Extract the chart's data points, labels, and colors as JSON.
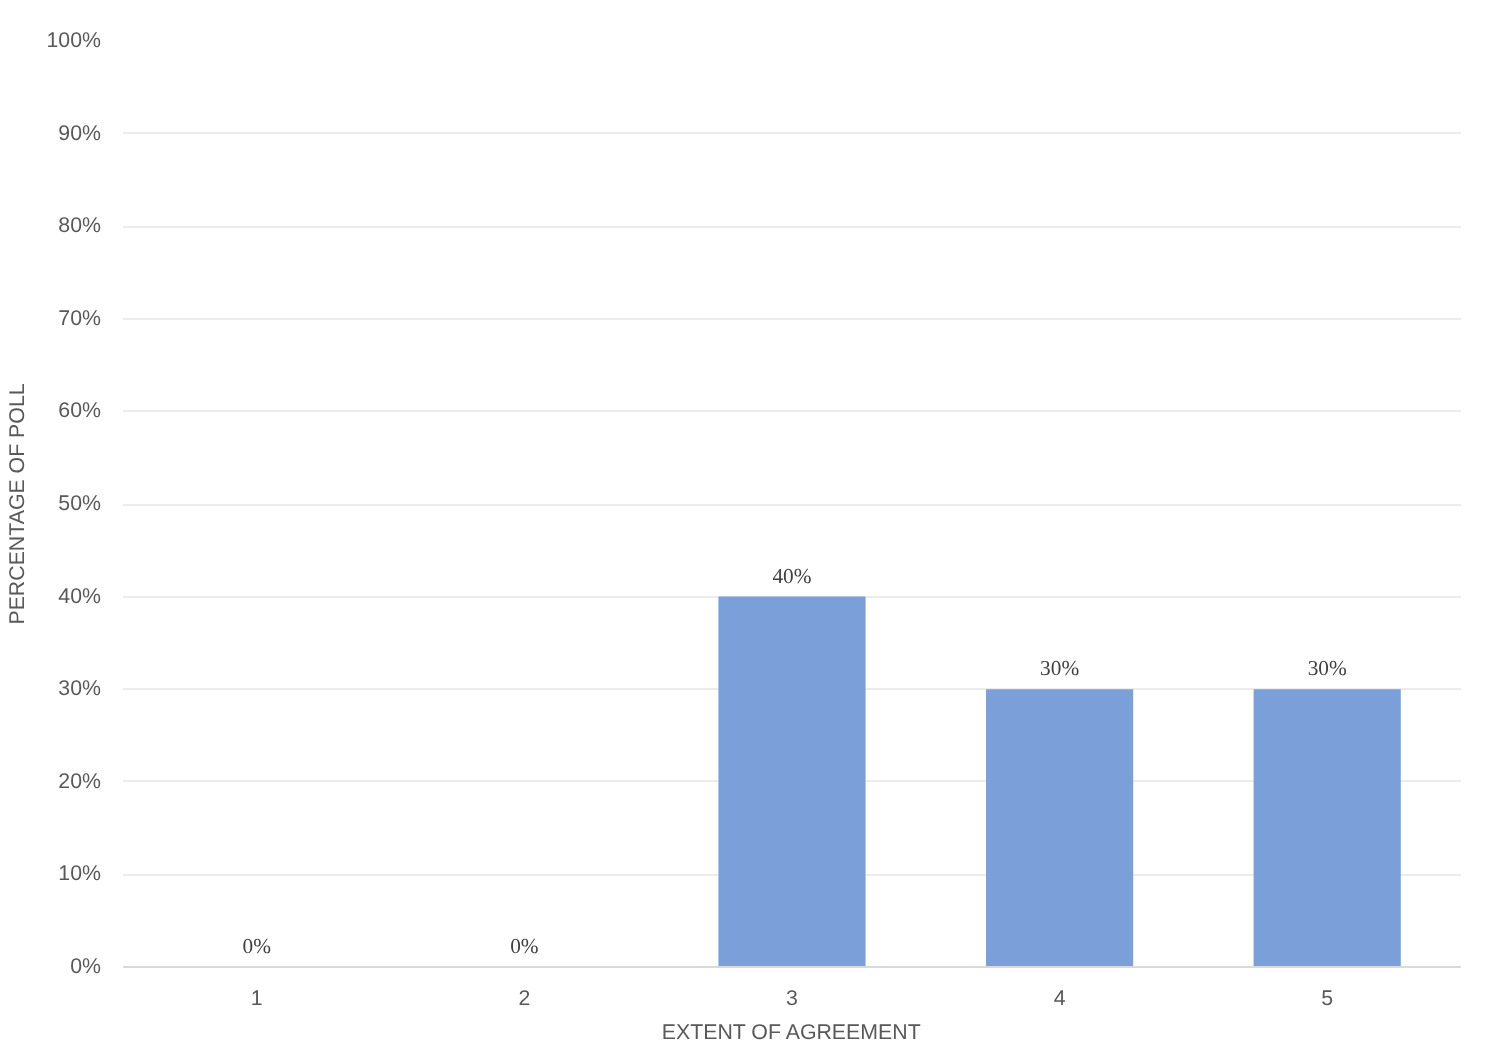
{
  "chart_data": {
    "type": "bar",
    "xlabel": "EXTENT OF AGREEMENT",
    "ylabel": "PERCENTAGE OF POLL",
    "categories": [
      "1",
      "2",
      "3",
      "4",
      "5"
    ],
    "values": [
      0,
      0,
      40,
      30,
      30
    ],
    "color": "#7b9fd8",
    "value_labels": [
      "0%",
      "0%",
      "40%",
      "30%",
      "30%"
    ],
    "ylim": [
      0,
      100
    ],
    "yticks": [
      {
        "value": 0,
        "label": "0%"
      },
      {
        "value": 10,
        "label": "10%"
      },
      {
        "value": 20,
        "label": "20%"
      },
      {
        "value": 30,
        "label": "30%"
      },
      {
        "value": 40,
        "label": "40%"
      },
      {
        "value": 50,
        "label": "50%"
      },
      {
        "value": 60,
        "label": "60%"
      },
      {
        "value": 70,
        "label": "70%"
      },
      {
        "value": 80,
        "label": "80%"
      },
      {
        "value": 90,
        "label": "90%"
      },
      {
        "value": 100,
        "label": "100%"
      }
    ],
    "grid": "y"
  }
}
